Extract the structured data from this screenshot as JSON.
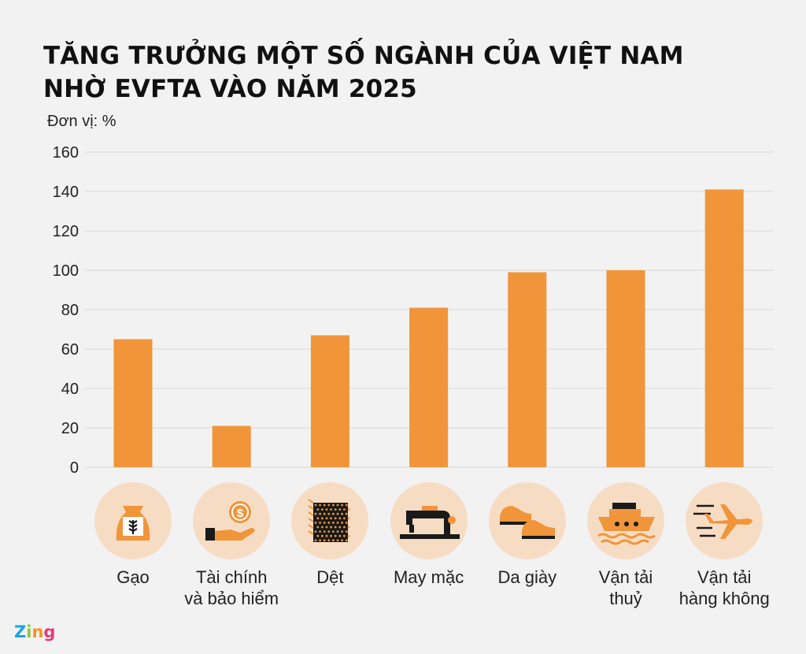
{
  "title": "TĂNG TRƯỞNG MỘT SỐ NGÀNH CỦA VIỆT NAM NHỜ EVFTA VÀO NĂM 2025",
  "unit_label": "Đơn vị: %",
  "brand": {
    "z": "Z",
    "i": "i",
    "n": "n",
    "g": "g"
  },
  "colors": {
    "bar": "#f0953a",
    "icon_bg": "#f7dcc4",
    "icon_dark": "#1a1a1a",
    "grid": "#d8d8d8"
  },
  "chart_data": {
    "type": "bar",
    "title": "TĂNG TRƯỞNG MỘT SỐ NGÀNH CỦA VIỆT NAM NHỜ EVFTA VÀO NĂM 2025",
    "ylabel": "Đơn vị: %",
    "xlabel": "",
    "ylim": [
      0,
      160
    ],
    "yticks": [
      0,
      20,
      40,
      60,
      80,
      100,
      120,
      140,
      160
    ],
    "grid": true,
    "categories": [
      {
        "lines": [
          "Gạo"
        ],
        "icon": "rice-sack-icon"
      },
      {
        "lines": [
          "Tài chính",
          "và bảo hiểm"
        ],
        "icon": "hand-coin-icon"
      },
      {
        "lines": [
          "Dệt"
        ],
        "icon": "textile-icon"
      },
      {
        "lines": [
          "May mặc"
        ],
        "icon": "sewing-machine-icon"
      },
      {
        "lines": [
          "Da giày"
        ],
        "icon": "shoes-icon"
      },
      {
        "lines": [
          "Vận tải",
          "thuỷ"
        ],
        "icon": "ship-icon"
      },
      {
        "lines": [
          "Vận tải",
          "hàng không"
        ],
        "icon": "airplane-icon"
      }
    ],
    "values": [
      65,
      21,
      67,
      81,
      99,
      100,
      141
    ]
  }
}
